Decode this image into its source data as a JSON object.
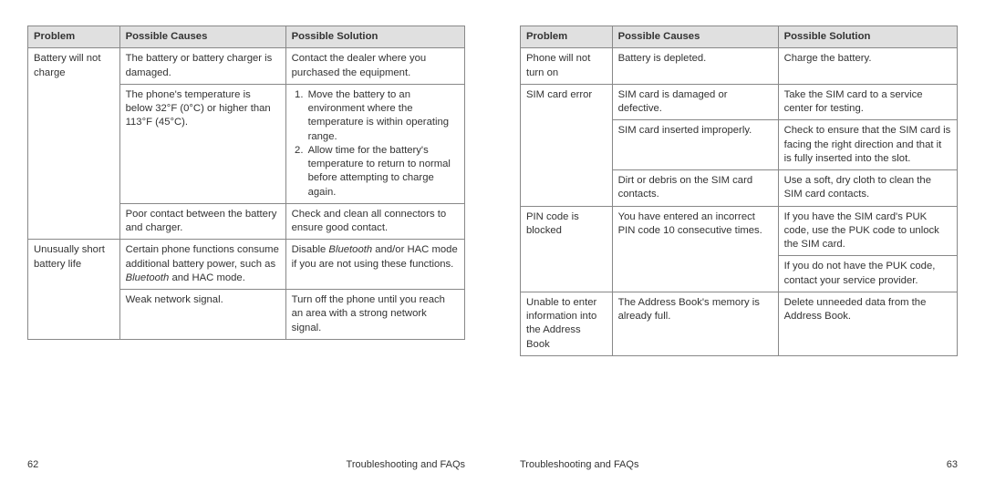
{
  "headers": {
    "problem": "Problem",
    "causes": "Possible Causes",
    "solution": "Possible Solution"
  },
  "footer_title": "Troubleshooting and FAQs",
  "left": {
    "page_num": "62",
    "rows": [
      {
        "problem": "Battery will not charge",
        "cause": "The battery or battery charger is damaged.",
        "solution": "Contact the dealer where you purchased the equipment."
      },
      {
        "cause": "The phone's temperature is below 32°F (0°C) or higher than 113°F (45°C).",
        "solution_list": [
          "Move the battery to an environment where the temperature is within operating range.",
          "Allow time for the battery's temperature to return to normal before attempting to charge again."
        ]
      },
      {
        "cause": "Poor contact between the battery and charger.",
        "solution": "Check and clean all connectors to ensure good contact."
      },
      {
        "problem": "Unusually short battery life",
        "cause_html": "Certain phone functions consume additional battery power, such as <em>Bluetooth</em> and HAC mode.",
        "solution_html": "Disable <em>Bluetooth</em> and/or HAC mode if you are not using these functions."
      },
      {
        "cause": "Weak network signal.",
        "solution": "Turn off the phone until you reach an area with a strong network signal."
      }
    ]
  },
  "right": {
    "page_num": "63",
    "rows": [
      {
        "problem": "Phone will not turn on",
        "cause": "Battery is depleted.",
        "solution": "Charge the battery."
      },
      {
        "problem": "SIM card error",
        "cause": "SIM card is damaged or defective.",
        "solution": "Take the SIM card to a service center for testing."
      },
      {
        "cause": "SIM card inserted improperly.",
        "solution": "Check to ensure that the SIM card is facing the right direction and that it is fully inserted into the slot."
      },
      {
        "cause": "Dirt or debris on the SIM card contacts.",
        "solution": "Use a soft, dry cloth to clean the SIM card contacts."
      },
      {
        "problem": "PIN code is blocked",
        "cause": "You have entered an incorrect PIN code 10 consecutive times.",
        "solution": "If you have the SIM card's PUK code, use the PUK code to unlock the SIM card."
      },
      {
        "solution": "If you do not have the PUK code, contact your service provider."
      },
      {
        "problem": "Unable to enter information into the Address Book",
        "cause": "The Address Book's memory is already full.",
        "solution": "Delete unneeded data from the Address Book."
      }
    ]
  }
}
